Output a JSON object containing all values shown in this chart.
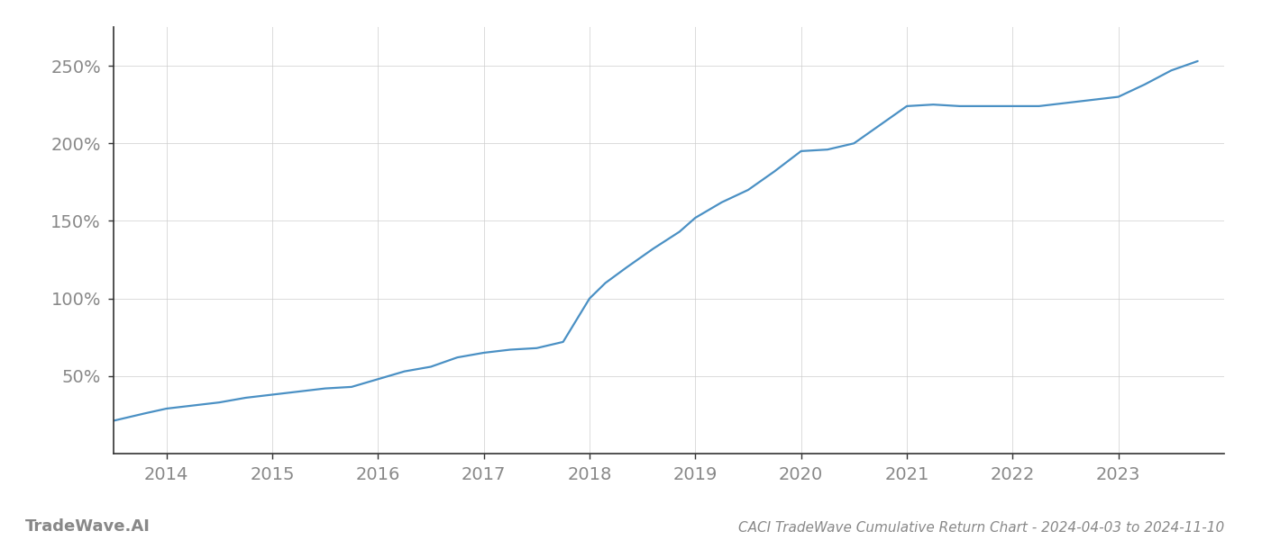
{
  "title": "CACI TradeWave Cumulative Return Chart - 2024-04-03 to 2024-11-10",
  "watermark": "TradeWave.AI",
  "line_color": "#4a90c4",
  "background_color": "#ffffff",
  "grid_color": "#cccccc",
  "x_years": [
    2014,
    2015,
    2016,
    2017,
    2018,
    2019,
    2020,
    2021,
    2022,
    2023
  ],
  "x_values": [
    2013.3,
    2013.55,
    2013.8,
    2014.0,
    2014.25,
    2014.5,
    2014.75,
    2015.0,
    2015.25,
    2015.5,
    2015.75,
    2016.0,
    2016.25,
    2016.5,
    2016.75,
    2017.0,
    2017.25,
    2017.5,
    2017.75,
    2018.0,
    2018.15,
    2018.35,
    2018.6,
    2018.85,
    2019.0,
    2019.25,
    2019.5,
    2019.75,
    2020.0,
    2020.25,
    2020.5,
    2020.75,
    2021.0,
    2021.25,
    2021.5,
    2021.75,
    2022.0,
    2022.25,
    2022.5,
    2022.75,
    2023.0,
    2023.25,
    2023.5,
    2023.75
  ],
  "y_values": [
    18,
    22,
    26,
    29,
    31,
    33,
    36,
    38,
    40,
    42,
    43,
    48,
    53,
    56,
    62,
    65,
    67,
    68,
    72,
    100,
    110,
    120,
    132,
    143,
    152,
    162,
    170,
    182,
    195,
    196,
    200,
    212,
    224,
    225,
    224,
    224,
    224,
    224,
    226,
    228,
    230,
    238,
    247,
    253
  ],
  "ylim": [
    0,
    275
  ],
  "yticks": [
    50,
    100,
    150,
    200,
    250
  ],
  "xlim": [
    2013.5,
    2024.0
  ],
  "title_fontsize": 11,
  "tick_fontsize": 14,
  "watermark_fontsize": 13,
  "line_width": 1.6,
  "spine_color": "#333333",
  "tick_color": "#888888",
  "title_color": "#888888",
  "grid_color_alpha": 0.7
}
